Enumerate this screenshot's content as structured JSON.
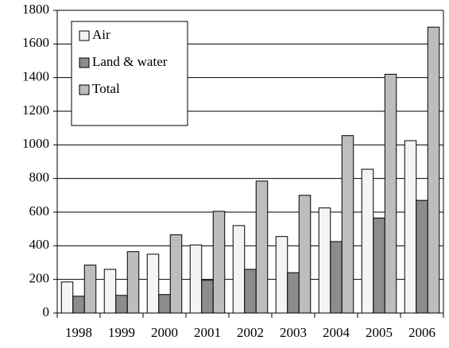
{
  "chart_data": {
    "type": "bar",
    "categories": [
      "1998",
      "1999",
      "2000",
      "2001",
      "2002",
      "2003",
      "2004",
      "2005",
      "2006"
    ],
    "series": [
      {
        "name": "Air",
        "color": "#f4f4f4",
        "values": [
          185,
          260,
          350,
          405,
          520,
          455,
          625,
          855,
          1025
        ]
      },
      {
        "name": "Land & water",
        "color": "#8c8c8c",
        "values": [
          100,
          105,
          110,
          195,
          260,
          240,
          425,
          565,
          670
        ]
      },
      {
        "name": "Total",
        "color": "#bdbdbd",
        "values": [
          285,
          365,
          465,
          605,
          785,
          700,
          1055,
          1420,
          1700
        ]
      }
    ],
    "ylim": [
      0,
      1800
    ],
    "yticks": [
      0,
      200,
      400,
      600,
      800,
      1000,
      1200,
      1400,
      1600,
      1800
    ],
    "grid": true,
    "legend": "upper-left"
  }
}
